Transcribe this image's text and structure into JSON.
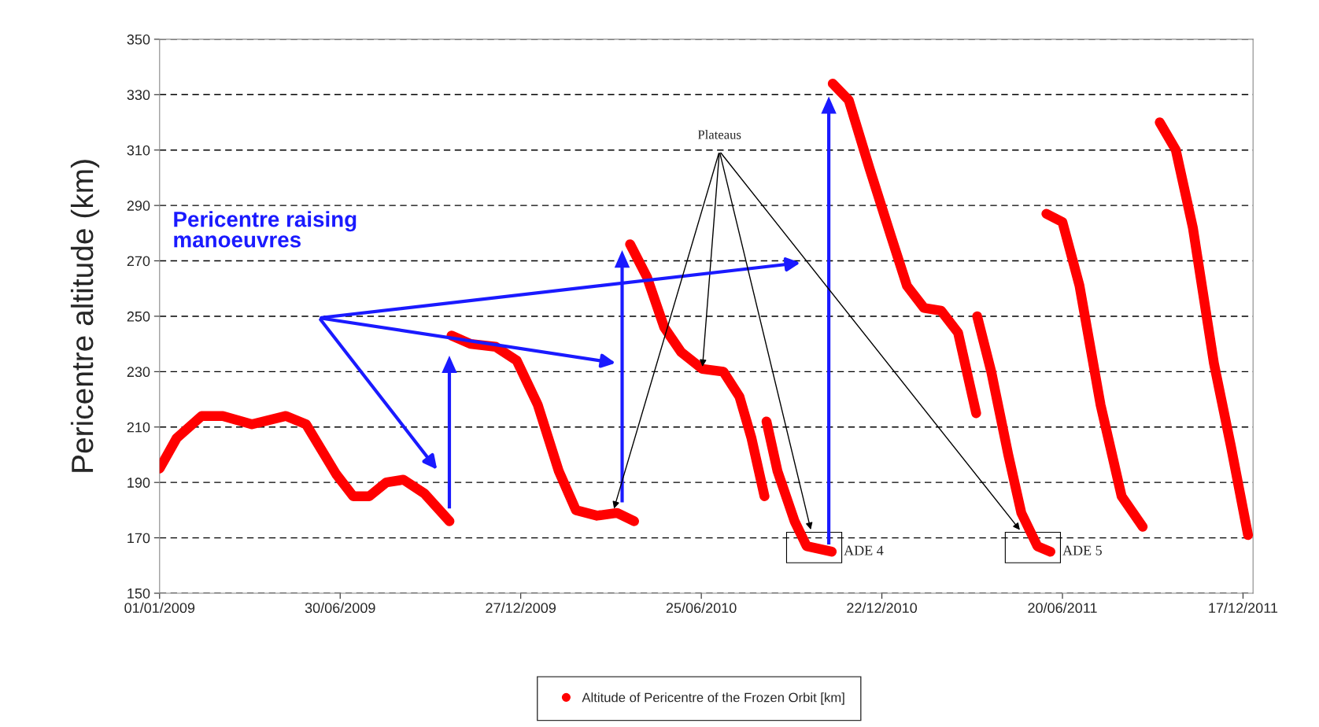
{
  "chart_data": {
    "type": "line",
    "ylabel": "Pericentre altitude (km)",
    "ylim": [
      150,
      350
    ],
    "yticks": [
      150,
      170,
      190,
      210,
      230,
      250,
      270,
      290,
      310,
      330,
      350
    ],
    "xlim": [
      "2009-01-01",
      "2011-12-27"
    ],
    "xticks": [
      {
        "value": "2009-01-01",
        "label": "01/01/2009"
      },
      {
        "value": "2009-06-30",
        "label": "30/06/2009"
      },
      {
        "value": "2009-12-27",
        "label": "27/12/2009"
      },
      {
        "value": "2010-06-25",
        "label": "25/06/2010"
      },
      {
        "value": "2010-12-22",
        "label": "22/12/2010"
      },
      {
        "value": "2011-06-20",
        "label": "20/06/2011"
      },
      {
        "value": "2011-12-17",
        "label": "17/12/2011"
      }
    ],
    "grid": "y",
    "legend": "bottom",
    "line_style": "solid",
    "series": [
      {
        "name": "Altitude of Pericentre of the Frozen Orbit [km]",
        "color": "#ff0000",
        "x": [
          "2009-01-01",
          "2009-01-18",
          "2009-02-12",
          "2009-03-05",
          "2009-04-03",
          "2009-05-07",
          "2009-05-27",
          "2009-06-26",
          "2009-07-13",
          "2009-07-29",
          "2009-08-15",
          "2009-09-01",
          "2009-09-22",
          "2009-10-17"
        ],
        "values": [
          195,
          206,
          214,
          214,
          211,
          214,
          211,
          193,
          185,
          185,
          190,
          191,
          186,
          176
        ]
      },
      {
        "color": "#ff0000",
        "x": [
          "2009-10-19",
          "2009-11-07",
          "2009-12-02",
          "2009-12-23",
          "2010-01-13",
          "2010-02-03",
          "2010-02-20",
          "2010-03-13",
          "2010-04-02",
          "2010-04-19"
        ],
        "values": [
          243,
          240,
          239,
          234,
          218,
          194,
          180,
          178,
          179,
          176
        ]
      },
      {
        "color": "#ff0000",
        "x": [
          "2010-04-15",
          "2010-05-02",
          "2010-05-19",
          "2010-06-05",
          "2010-06-26",
          "2010-07-17",
          "2010-08-02",
          "2010-08-14",
          "2010-08-27"
        ],
        "values": [
          276,
          264,
          246,
          237,
          231,
          230,
          221,
          206,
          185
        ]
      },
      {
        "color": "#ff0000",
        "x": [
          "2010-08-29",
          "2010-09-09",
          "2010-09-26",
          "2010-10-08",
          "2010-11-02"
        ],
        "values": [
          212,
          194,
          176,
          167,
          165
        ]
      },
      {
        "color": "#ff0000",
        "x": [
          "2010-11-03",
          "2010-11-19",
          "2010-12-10",
          "2010-12-31",
          "2011-01-16",
          "2011-02-02",
          "2011-02-19",
          "2011-03-08",
          "2011-03-26"
        ],
        "values": [
          334,
          328,
          303,
          279,
          261,
          253,
          252,
          244,
          215
        ]
      },
      {
        "color": "#ff0000",
        "x": [
          "2011-03-27",
          "2011-04-10",
          "2011-04-27",
          "2011-05-10",
          "2011-05-26",
          "2011-06-08"
        ],
        "values": [
          250,
          230,
          200,
          179,
          167,
          165
        ]
      },
      {
        "color": "#ff0000",
        "x": [
          "2011-06-04",
          "2011-06-20",
          "2011-07-07",
          "2011-07-28",
          "2011-08-18",
          "2011-09-08"
        ],
        "values": [
          287,
          284,
          261,
          218,
          185,
          174
        ]
      },
      {
        "color": "#ff0000",
        "x": [
          "2011-09-25",
          "2011-10-11",
          "2011-10-28",
          "2011-11-18",
          "2011-12-05",
          "2011-12-22"
        ],
        "values": [
          320,
          310,
          282,
          233,
          203,
          171
        ]
      }
    ],
    "annotations": [
      "Pericentre raising\nmanoeuvres",
      {
        "text": "Plateaus",
        "x": "2010-06-26",
        "y": 231
      },
      {
        "text": "ADE 4",
        "x": "2010-11-02",
        "y": 165
      },
      {
        "text": "ADE 5",
        "x": "2011-06-08",
        "y": 165
      }
    ]
  }
}
